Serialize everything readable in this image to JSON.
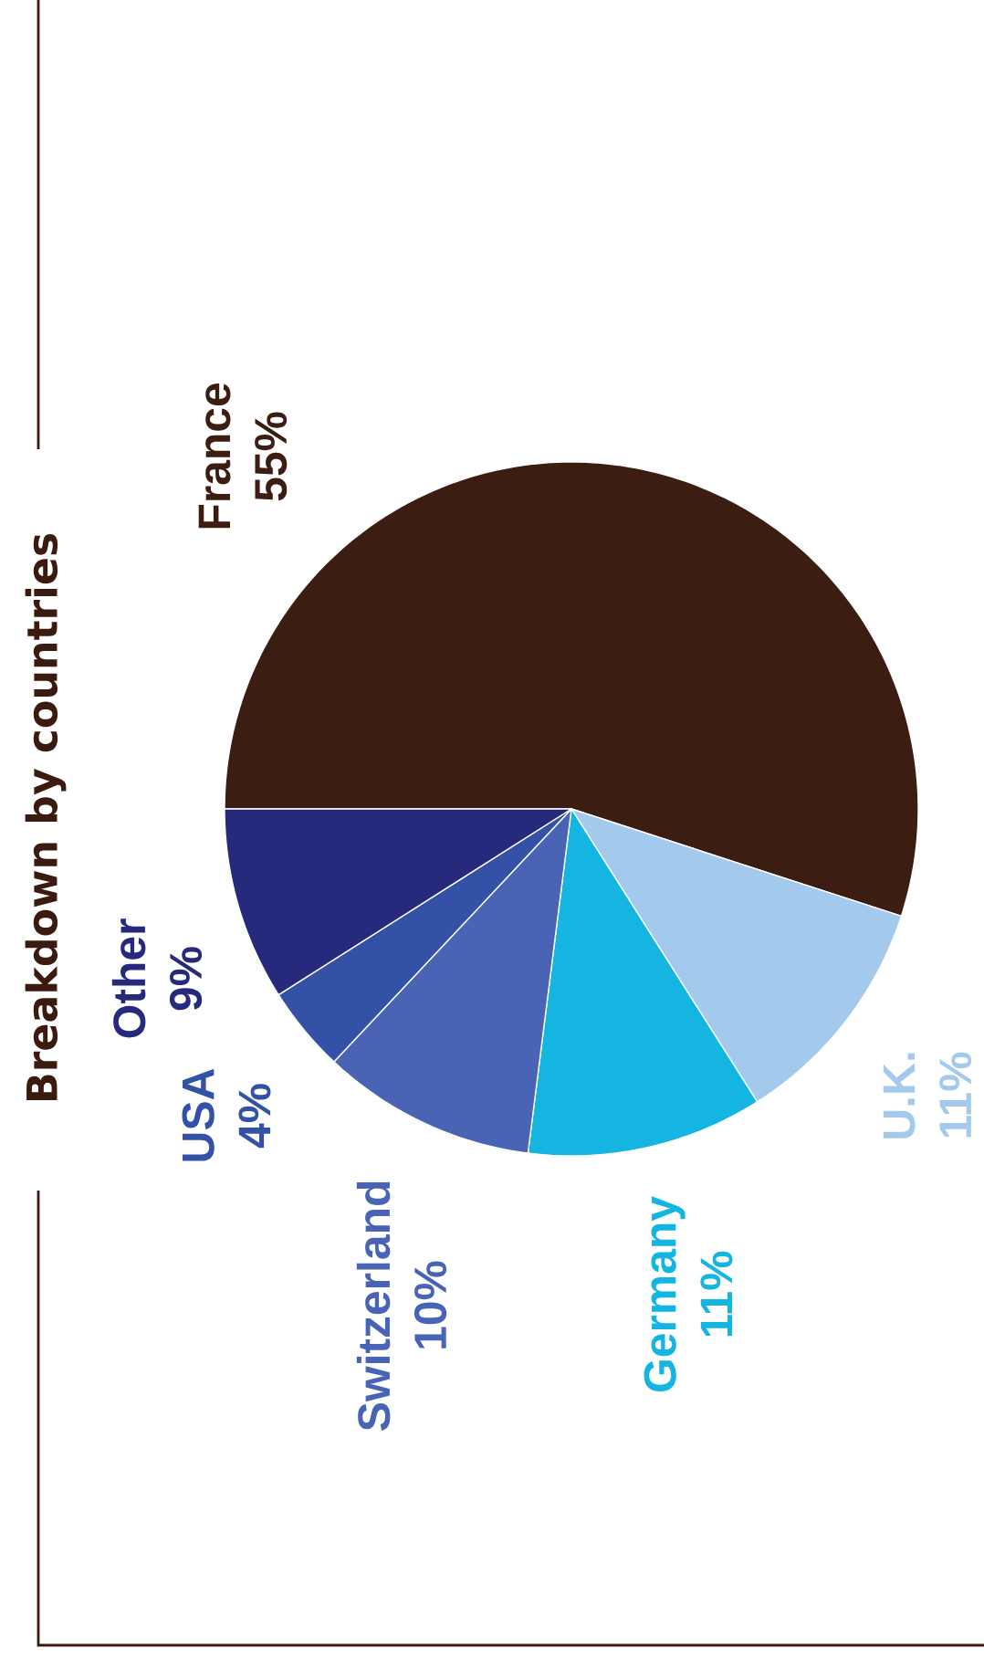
{
  "chart_data": {
    "type": "pie",
    "title": "Breakdown by countries",
    "categories": [
      "France",
      "U.K.",
      "Germany",
      "Switzerland",
      "USA",
      "Other"
    ],
    "values": [
      55,
      11,
      11,
      10,
      4,
      9
    ],
    "colors": [
      "#3b1d12",
      "#a3c9ec",
      "#14b5e1",
      "#4a64b5",
      "#3451a8",
      "#27297c"
    ],
    "value_labels": [
      "55%",
      "11%",
      "11%",
      "10%",
      "4%",
      "9%"
    ]
  }
}
